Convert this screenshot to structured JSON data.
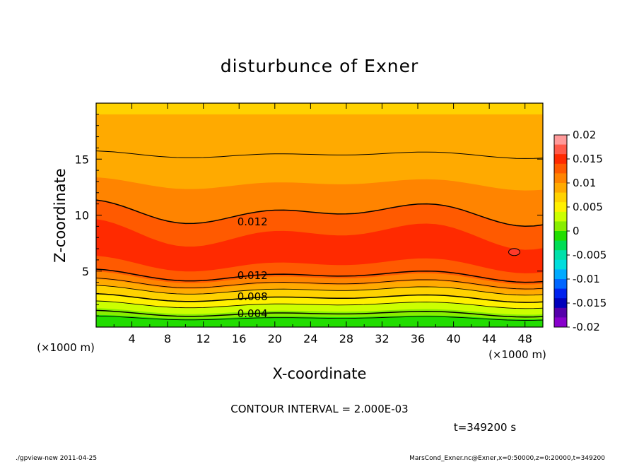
{
  "chart_data": {
    "type": "contour",
    "title": "disturbunce of Exner",
    "xlabel": "X-coordinate",
    "ylabel": "Z-coordinate",
    "x_unit_left": "(×1000 m)",
    "x_unit_right": "(×1000 m)",
    "xlim": [
      0,
      50
    ],
    "ylim": [
      0,
      20
    ],
    "xticks": [
      "4",
      "8",
      "12",
      "16",
      "20",
      "24",
      "28",
      "32",
      "36",
      "40",
      "44",
      "48"
    ],
    "yticks": [
      "5",
      "10",
      "15"
    ],
    "contour_labels": [
      {
        "text": "0.012",
        "x": 17.5,
        "z": 9.4
      },
      {
        "text": "0.012",
        "x": 17.5,
        "z": 4.6
      },
      {
        "text": "0.008",
        "x": 17.5,
        "z": 2.7
      },
      {
        "text": "0.004",
        "x": 17.5,
        "z": 1.2
      }
    ],
    "colorbar": {
      "labels": [
        "0.02",
        "0.015",
        "0.01",
        "0.005",
        "0",
        "-0.005",
        "-0.01",
        "-0.015",
        "-0.02"
      ],
      "colors_top_to_bottom": [
        "#ff9a9a",
        "#ff5a4a",
        "#ff2a00",
        "#ff5a00",
        "#ff8400",
        "#ffaa00",
        "#ffd200",
        "#fff000",
        "#ccff00",
        "#88ee00",
        "#22dd00",
        "#00dd55",
        "#00e0aa",
        "#00dddd",
        "#00aaff",
        "#0066ff",
        "#0022ee",
        "#0000bb",
        "#5500aa",
        "#8800cc"
      ]
    },
    "contour_interval_text": "CONTOUR INTERVAL = 2.000E-03",
    "time_text": "t=349200 s"
  },
  "footer": {
    "left": "./gpview-new  2011-04-25",
    "right": "MarsCond_Exner.nc@Exner,x=0:50000,z=0:20000,t=349200"
  }
}
